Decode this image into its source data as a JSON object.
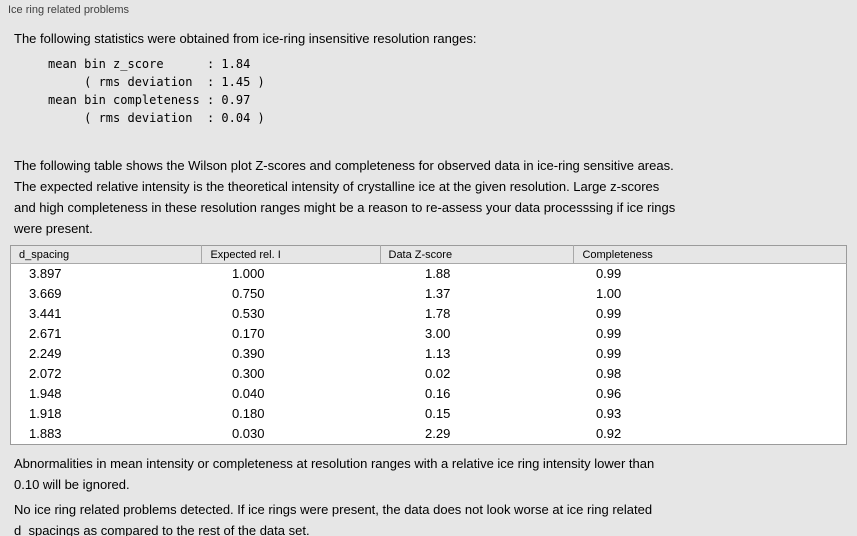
{
  "panel": {
    "title": "Ice ring related problems"
  },
  "stats": {
    "intro": "The following statistics were obtained from ice-ring insensitive resolution ranges:",
    "block": "mean bin z_score      : 1.84\n     ( rms deviation  : 1.45 )\nmean bin completeness : 0.97\n     ( rms deviation  : 0.04 )"
  },
  "table_intro": "The following table shows the Wilson plot Z-scores and completeness for observed data in ice-ring sensitive areas.\nThe expected relative intensity is the theoretical intensity of crystalline ice at the given resolution. Large z-scores\nand high completeness in these resolution ranges might be a reason to re-assess your data processsing if ice rings\nwere present.",
  "table": {
    "headers": [
      "d_spacing",
      "Expected rel. I",
      "Data Z-score",
      "Completeness"
    ],
    "rows": [
      [
        "3.897",
        "1.000",
        "1.88",
        "0.99"
      ],
      [
        "3.669",
        "0.750",
        "1.37",
        "1.00"
      ],
      [
        "3.441",
        "0.530",
        "1.78",
        "0.99"
      ],
      [
        "2.671",
        "0.170",
        "3.00",
        "0.99"
      ],
      [
        "2.249",
        "0.390",
        "1.13",
        "0.99"
      ],
      [
        "2.072",
        "0.300",
        "0.02",
        "0.98"
      ],
      [
        "1.948",
        "0.040",
        "0.16",
        "0.96"
      ],
      [
        "1.918",
        "0.180",
        "0.15",
        "0.93"
      ],
      [
        "1.883",
        "0.030",
        "2.29",
        "0.92"
      ]
    ]
  },
  "notes": {
    "ignore": "Abnormalities in mean intensity or completeness at resolution ranges with a relative ice ring intensity lower than\n0.10 will be ignored.",
    "result": "No ice ring related problems detected. If ice rings were present, the data does not look worse at ice ring related\nd_spacings as compared to the rest of the data set."
  }
}
